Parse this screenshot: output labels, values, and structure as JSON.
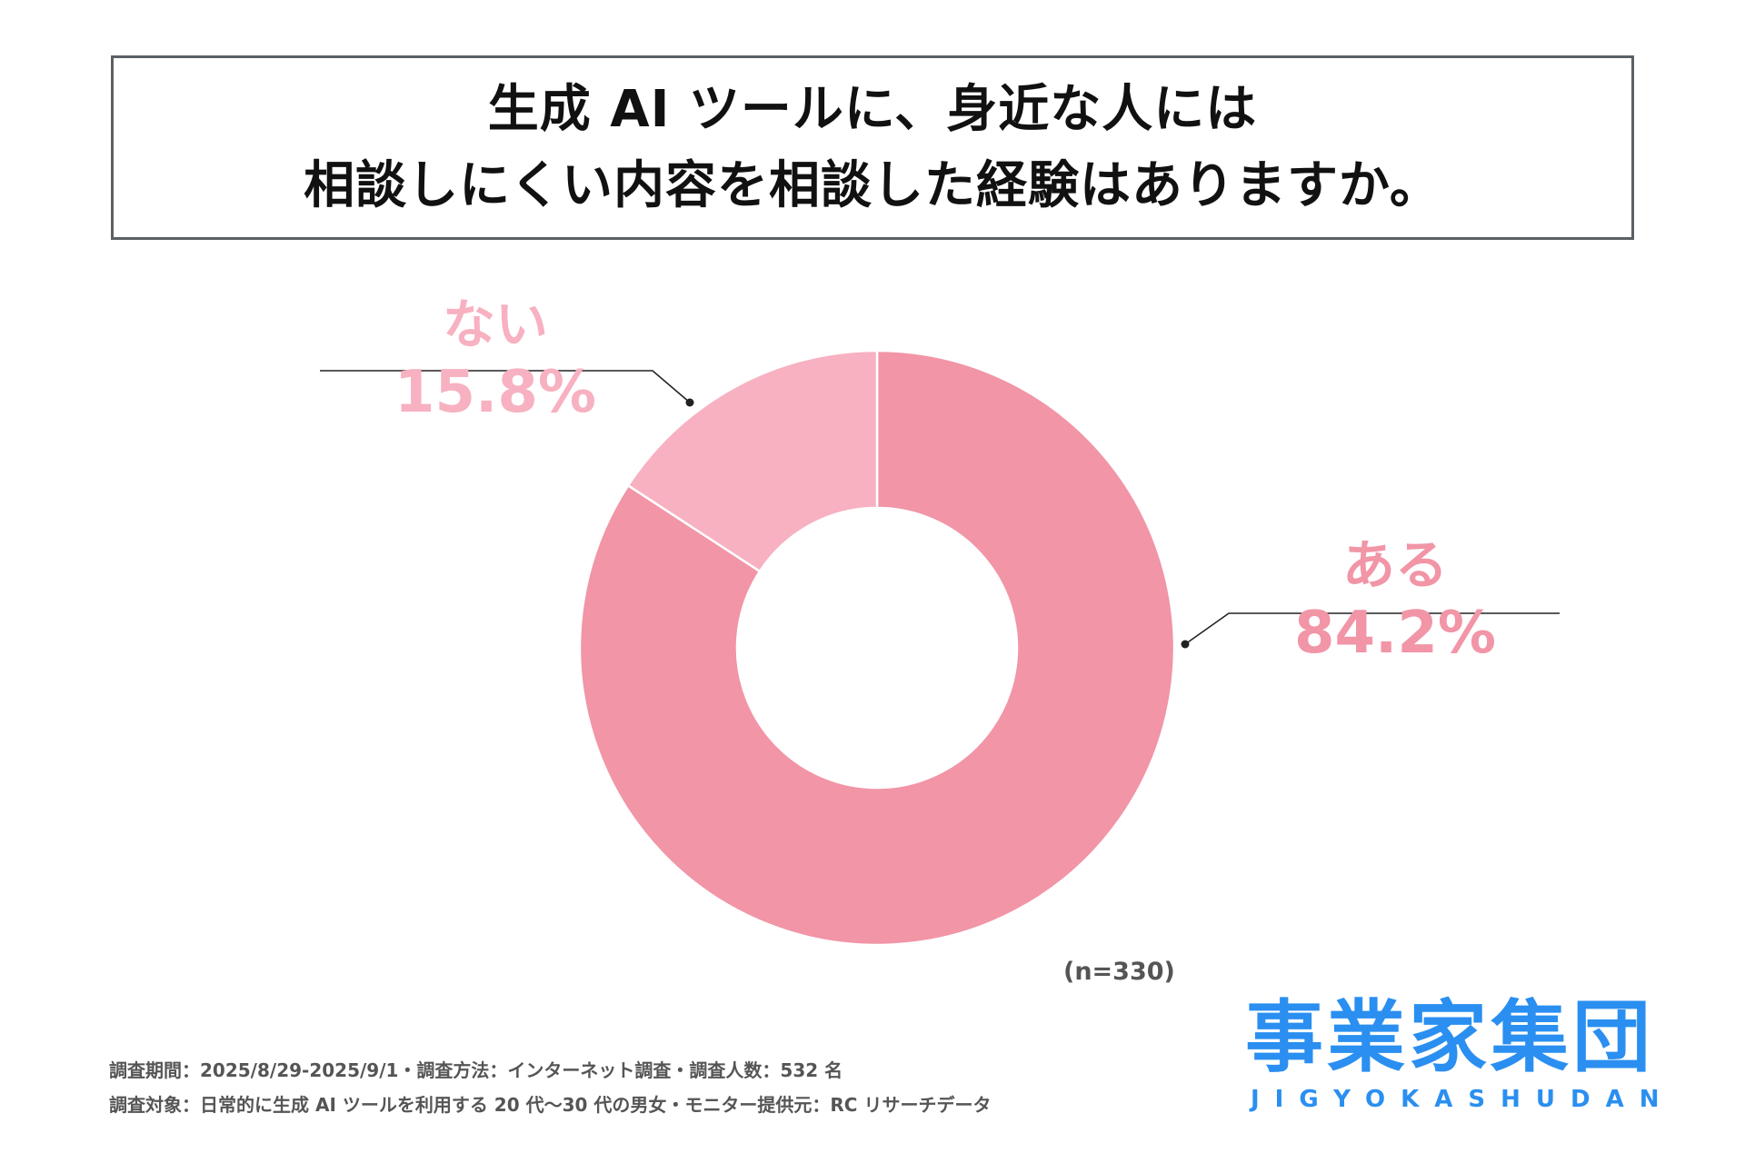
{
  "title": {
    "line1": "生成 AI ツールに、身近な人には",
    "line2": "相談しにくい内容を相談した経験はありますか。"
  },
  "chart_data": {
    "type": "pie",
    "donut": true,
    "slices": [
      {
        "label": "ある",
        "value": 84.2,
        "value_label": "84.2%",
        "color": "#f195a7"
      },
      {
        "label": "ない",
        "value": 15.8,
        "value_label": "15.8%",
        "color": "#f7b1c1"
      }
    ],
    "start": "12 o'clock, clockwise"
  },
  "sample_note": "(n=330)",
  "footnotes": {
    "line1": "調査期間：2025/8/29-2025/9/1・調査方法：インターネット調査・調査人数：532 名",
    "line2": "調査対象：日常的に生成 AI ツールを利用する 20 代〜30 代の男女・モニター提供元：RC リサーチデータ"
  },
  "logo": {
    "main": "事業家集団",
    "sub": "JIGYOKASHUDAN",
    "color": "#2a8ff0"
  },
  "colors": {
    "border": "#5a6066",
    "leader_line": "#222222"
  }
}
